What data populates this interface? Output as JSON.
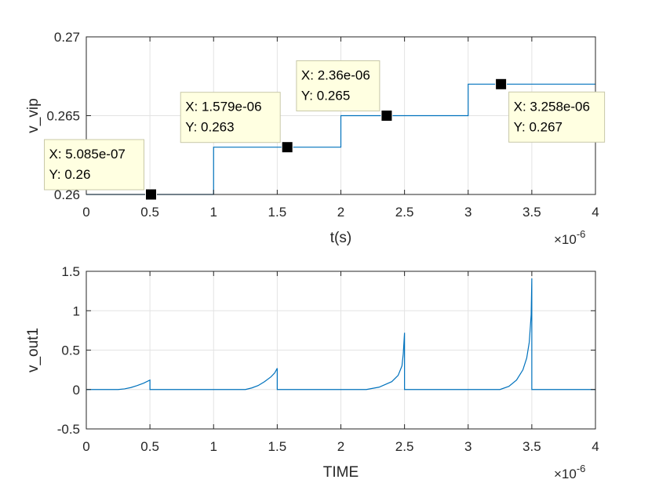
{
  "chart_data": [
    {
      "type": "line",
      "step": true,
      "xlabel": "t(s)",
      "ylabel": "v_vip",
      "xlim": [
        0,
        4e-06
      ],
      "ylim": [
        0.26,
        0.27
      ],
      "xticks": [
        0,
        0.5,
        1,
        1.5,
        2,
        2.5,
        3,
        3.5,
        4
      ],
      "xtick_labels": [
        "0",
        "0.5",
        "1",
        "1.5",
        "2",
        "2.5",
        "3",
        "3.5",
        "4"
      ],
      "yticks": [
        0.26,
        0.265,
        0.27
      ],
      "ytick_labels": [
        "0.26",
        "0.265",
        "0.27"
      ],
      "x_exponent": "×10",
      "x_exponent_power": "-6",
      "grid": true,
      "line_color": "#0072BD",
      "series": [
        {
          "x": [
            0,
            1e-06,
            1e-06,
            2e-06,
            2e-06,
            3e-06,
            3e-06,
            4e-06
          ],
          "y": [
            0.26,
            0.26,
            0.263,
            0.263,
            0.265,
            0.265,
            0.267,
            0.267
          ]
        }
      ],
      "datatips": [
        {
          "x": 5.085e-07,
          "y": 0.26,
          "line1": "X: 5.085e-07",
          "line2": "Y: 0.26",
          "placement": "above-left"
        },
        {
          "x": 1.579e-06,
          "y": 0.263,
          "line1": "X: 1.579e-06",
          "line2": "Y: 0.263",
          "placement": "above-left"
        },
        {
          "x": 2.36e-06,
          "y": 0.265,
          "line1": "X: 2.36e-06",
          "line2": "Y: 0.265",
          "placement": "above-left"
        },
        {
          "x": 3.258e-06,
          "y": 0.267,
          "line1": "X: 3.258e-06",
          "line2": "Y: 0.267",
          "placement": "below-right"
        }
      ]
    },
    {
      "type": "line",
      "xlabel": "TIME",
      "ylabel": "v_out1",
      "xlim": [
        0,
        4e-06
      ],
      "ylim": [
        -0.5,
        1.5
      ],
      "xticks": [
        0,
        0.5,
        1,
        1.5,
        2,
        2.5,
        3,
        3.5,
        4
      ],
      "xtick_labels": [
        "0",
        "0.5",
        "1",
        "1.5",
        "2",
        "2.5",
        "3",
        "3.5",
        "4"
      ],
      "yticks": [
        -0.5,
        0,
        0.5,
        1,
        1.5
      ],
      "ytick_labels": [
        "-0.5",
        "0",
        "0.5",
        "1",
        "1.5"
      ],
      "x_exponent": "×10",
      "x_exponent_power": "-6",
      "grid": true,
      "line_color": "#0072BD",
      "series": [
        {
          "x": [
            0,
            2.5e-07,
            3e-07,
            3.5e-07,
            4e-07,
            4.5e-07,
            5e-07,
            5e-07,
            1.25e-06,
            1.3e-06,
            1.35e-06,
            1.4e-06,
            1.45e-06,
            1.48e-06,
            1.5e-06,
            1.5e-06,
            2.2e-06,
            2.3e-06,
            2.4e-06,
            2.45e-06,
            2.48e-06,
            2.49e-06,
            2.5e-06,
            2.5e-06,
            3.25e-06,
            3.32e-06,
            3.38e-06,
            3.43e-06,
            3.46e-06,
            3.48e-06,
            3.495e-06,
            3.5e-06,
            3.5e-06,
            4e-06
          ],
          "y": [
            0,
            0,
            0.008,
            0.025,
            0.05,
            0.08,
            0.12,
            0,
            0,
            0.02,
            0.05,
            0.1,
            0.16,
            0.21,
            0.27,
            0,
            0,
            0.03,
            0.1,
            0.18,
            0.3,
            0.45,
            0.72,
            0,
            0,
            0.04,
            0.12,
            0.25,
            0.4,
            0.6,
            0.95,
            1.41,
            0,
            0
          ]
        }
      ]
    }
  ]
}
